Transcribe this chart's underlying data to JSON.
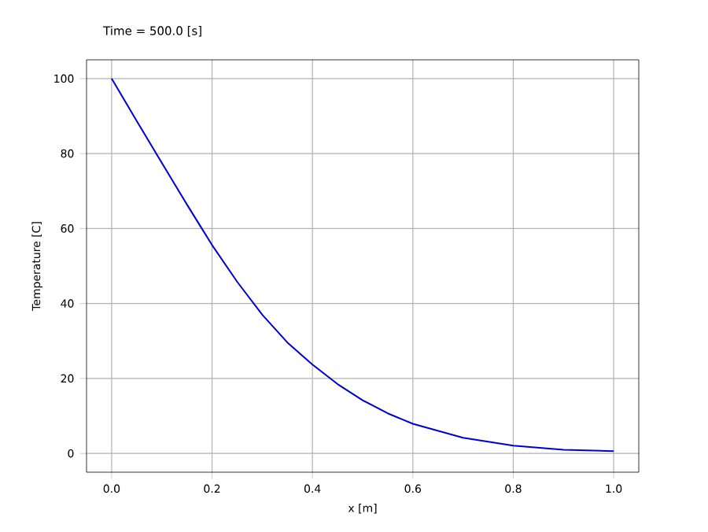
{
  "chart_data": {
    "type": "line",
    "title": "Time =    500.0 [s]",
    "xlabel": "x [m]",
    "ylabel": "Temperature [C]",
    "x": [
      0,
      0.05,
      0.1,
      0.15,
      0.2,
      0.25,
      0.3,
      0.35,
      0.4,
      0.45,
      0.5,
      0.55,
      0.6,
      0.7,
      0.8,
      0.9,
      1.0
    ],
    "series": [
      {
        "color": "#0000cc",
        "values": [
          100,
          88.7,
          77.5,
          66.4,
          55.6,
          45.8,
          37,
          29.6,
          23.7,
          18.5,
          14.2,
          10.7,
          7.9,
          4.2,
          2.1,
          1.0,
          0.6
        ]
      }
    ],
    "xlim": [
      -0.05,
      1.05
    ],
    "ylim": [
      -5,
      105
    ],
    "xticks": [
      {
        "value": 0,
        "label": "0.0"
      },
      {
        "value": 0.2,
        "label": "0.2"
      },
      {
        "value": 0.4,
        "label": "0.4"
      },
      {
        "value": 0.6,
        "label": "0.6"
      },
      {
        "value": 0.8,
        "label": "0.8"
      },
      {
        "value": 1.0,
        "label": "1.0"
      }
    ],
    "yticks": [
      0,
      20,
      40,
      60,
      80,
      100
    ],
    "grid": true,
    "marker": "none",
    "line_style": "solid"
  }
}
